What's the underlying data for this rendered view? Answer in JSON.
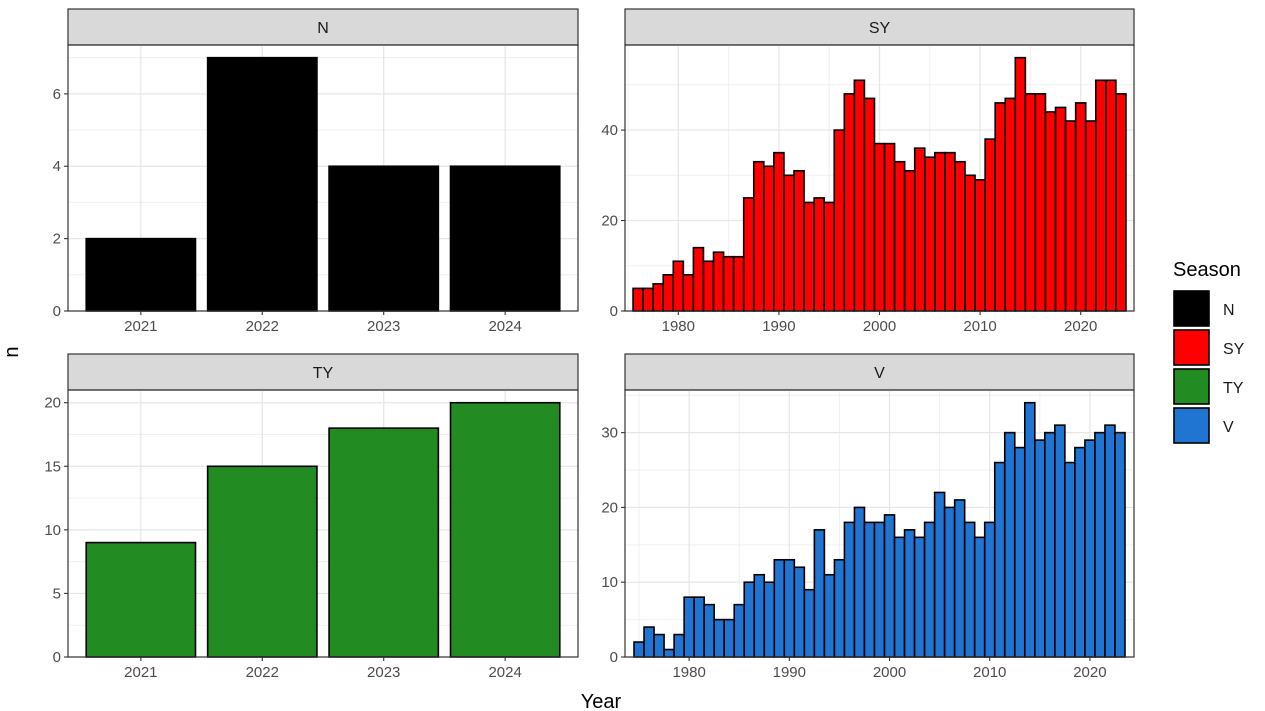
{
  "chart_data": {
    "type": "bar",
    "layout": "facet_wrap 2x2, free scales",
    "xlabel": "Year",
    "ylabel": "n",
    "legend": {
      "title": "Season",
      "position": "right",
      "entries": [
        {
          "label": "N",
          "color": "#000000"
        },
        {
          "label": "SY",
          "color": "#ff0000"
        },
        {
          "label": "TY",
          "color": "#228b22"
        },
        {
          "label": "V",
          "color": "#1f75d1"
        }
      ]
    },
    "panels": [
      {
        "strip": "N",
        "color": "#000000",
        "x_kind": "categorical",
        "x": [
          "2021",
          "2022",
          "2023",
          "2024"
        ],
        "values": [
          2,
          7,
          4,
          4
        ],
        "ylim": [
          0,
          7.35
        ],
        "yticks": [
          0,
          2,
          4,
          6
        ]
      },
      {
        "strip": "SY",
        "color": "#ff0000",
        "x_kind": "continuous",
        "x": [
          1976,
          1977,
          1978,
          1979,
          1980,
          1981,
          1982,
          1983,
          1984,
          1985,
          1986,
          1987,
          1988,
          1989,
          1990,
          1991,
          1992,
          1993,
          1994,
          1995,
          1996,
          1997,
          1998,
          1999,
          2000,
          2001,
          2002,
          2003,
          2004,
          2005,
          2006,
          2007,
          2008,
          2009,
          2010,
          2011,
          2012,
          2013,
          2014,
          2015,
          2016,
          2017,
          2018,
          2019,
          2020,
          2021,
          2022,
          2023,
          2024
        ],
        "values": [
          5,
          5,
          6,
          8,
          11,
          8,
          14,
          11,
          13,
          12,
          12,
          25,
          33,
          32,
          35,
          30,
          31,
          24,
          25,
          24,
          40,
          48,
          51,
          47,
          37,
          37,
          33,
          31,
          36,
          34,
          35,
          35,
          33,
          30,
          29,
          38,
          46,
          47,
          56,
          48,
          48,
          44,
          45,
          42,
          46,
          42,
          51,
          51,
          48
        ],
        "xlim": [
          1974.7,
          2025.3
        ],
        "xticks": [
          1980,
          1990,
          2000,
          2010,
          2020
        ],
        "ylim": [
          0,
          58.8
        ],
        "yticks": [
          0,
          20,
          40
        ]
      },
      {
        "strip": "TY",
        "color": "#228b22",
        "x_kind": "categorical",
        "x": [
          "2021",
          "2022",
          "2023",
          "2024"
        ],
        "values": [
          9,
          15,
          18,
          20
        ],
        "ylim": [
          0,
          21
        ],
        "yticks": [
          0,
          5,
          10,
          15,
          20
        ]
      },
      {
        "strip": "V",
        "color": "#1f75d1",
        "x_kind": "continuous",
        "x": [
          1975,
          1976,
          1977,
          1978,
          1979,
          1980,
          1981,
          1982,
          1983,
          1984,
          1985,
          1986,
          1987,
          1988,
          1989,
          1990,
          1991,
          1992,
          1993,
          1994,
          1995,
          1996,
          1997,
          1998,
          1999,
          2000,
          2001,
          2002,
          2003,
          2004,
          2005,
          2006,
          2007,
          2008,
          2009,
          2010,
          2011,
          2012,
          2013,
          2014,
          2015,
          2016,
          2017,
          2018,
          2019,
          2020,
          2021,
          2022,
          2023
        ],
        "values": [
          2,
          4,
          3,
          1,
          3,
          8,
          8,
          7,
          5,
          5,
          7,
          10,
          11,
          10,
          13,
          13,
          12,
          9,
          17,
          11,
          13,
          18,
          20,
          18,
          18,
          19,
          16,
          17,
          16,
          18,
          22,
          20,
          21,
          18,
          16,
          18,
          26,
          30,
          28,
          34,
          29,
          30,
          31,
          26,
          28,
          29,
          30,
          31,
          30
        ],
        "xlim": [
          1973.6,
          2024.4
        ],
        "xticks": [
          1980,
          1990,
          2000,
          2010,
          2020
        ],
        "ylim": [
          0,
          35.7
        ],
        "yticks": [
          0,
          10,
          20,
          30
        ]
      }
    ]
  }
}
